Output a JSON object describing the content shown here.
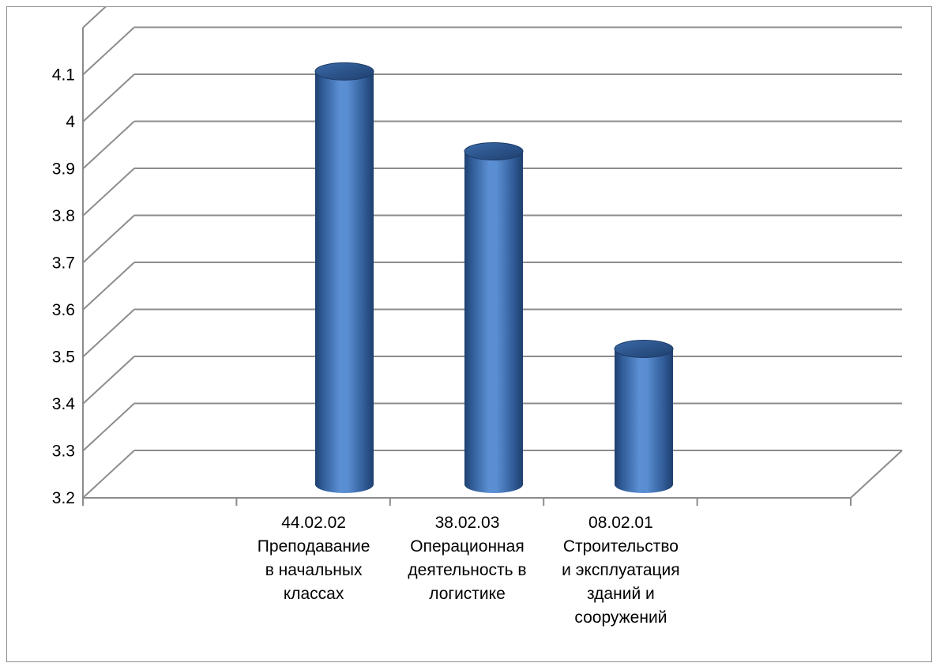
{
  "chart_data": {
    "type": "bar",
    "style": "3d-cylinder",
    "categories": [
      "44.02.02\nПреподавание\nв начальных\nклассах",
      "38.02.03\nОперационная\nдеятельность в\nлогистике",
      "08.02.01\nСтроительство\nи эксплуатация\nзданий и\nсооружений"
    ],
    "values": [
      4.08,
      3.91,
      3.49
    ],
    "ylim": [
      3.2,
      4.2
    ],
    "yticks": [
      "3.2",
      "3.3",
      "3.4",
      "3.5",
      "3.6",
      "3.7",
      "3.8",
      "3.9",
      "4",
      "4.1"
    ],
    "grid": true,
    "legend": "none",
    "colors": {
      "bar": "#4a7ebb",
      "bar_dark": "#1f3f6e",
      "bar_light": "#7aa7e0",
      "grid": "#8c8c8c"
    }
  }
}
